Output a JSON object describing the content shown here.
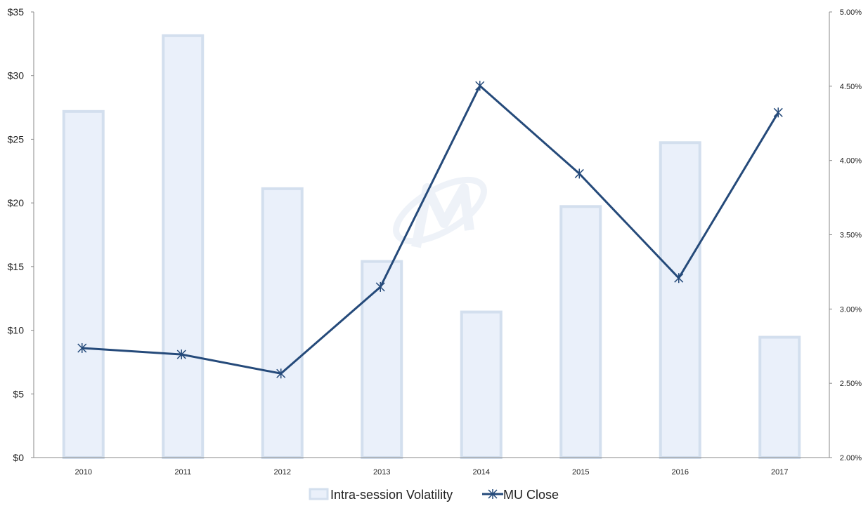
{
  "chart_data": {
    "type": "bar+line",
    "title": "",
    "categories": [
      "2010",
      "2011",
      "2012",
      "2013",
      "2014",
      "2015",
      "2016",
      "2017"
    ],
    "series": [
      {
        "name": "Intra-session Volatility",
        "type": "bar",
        "axis": "right",
        "values": [
          4.33,
          4.84,
          3.81,
          3.32,
          2.98,
          3.69,
          4.12,
          2.81
        ]
      },
      {
        "name": "MU Close",
        "type": "line",
        "axis": "left",
        "values": [
          8.6,
          8.1,
          6.6,
          13.4,
          29.2,
          22.3,
          14.1,
          27.1
        ]
      }
    ],
    "y_left": {
      "ylim": [
        0,
        35
      ],
      "ticks": [
        0,
        5,
        10,
        15,
        20,
        25,
        30,
        35
      ],
      "tick_labels": [
        "$0",
        "$5",
        "$10",
        "$15",
        "$20",
        "$25",
        "$30",
        "$35"
      ]
    },
    "y_right": {
      "ylim": [
        2.0,
        5.0
      ],
      "ticks": [
        2.0,
        2.5,
        3.0,
        3.5,
        4.0,
        4.5,
        5.0
      ],
      "tick_labels": [
        "2.00%",
        "2.50%",
        "3.00%",
        "3.50%",
        "4.00%",
        "4.50%",
        "5.00%"
      ]
    },
    "legend": {
      "position": "bottom",
      "items": [
        "Intra-session Volatility",
        "MU Close"
      ]
    },
    "grid": false,
    "colors": {
      "bar_fill": "#eaf0fa",
      "bar_stroke": "#d3dfee",
      "line": "#254a7a",
      "axis": "#888888"
    }
  }
}
